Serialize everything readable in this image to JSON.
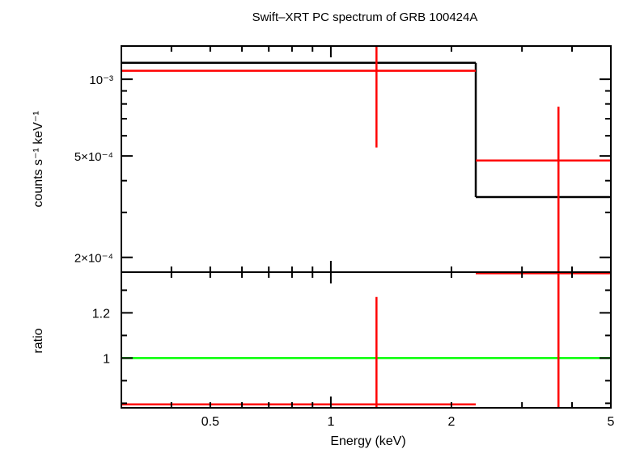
{
  "chart_data": {
    "type": "scatter",
    "title": "Swift–XRT PC spectrum of GRB 100424A",
    "xlabel": "Energy (keV)",
    "xscale": "log",
    "xlim": [
      0.3,
      5
    ],
    "x_ticks": [
      {
        "value": 0.5,
        "label": "0.5"
      },
      {
        "value": 1,
        "label": "1"
      },
      {
        "value": 2,
        "label": "2"
      },
      {
        "value": 5,
        "label": "5"
      }
    ],
    "top_panel": {
      "ylabel": "counts s⁻¹ keV⁻¹",
      "yscale": "log",
      "ylim": [
        0.000175,
        0.00135
      ],
      "y_ticks": [
        {
          "value": 0.001,
          "label": "10⁻³"
        },
        {
          "value": 0.0005,
          "label": "5×10⁻⁴"
        },
        {
          "value": 0.0002,
          "label": "2×10⁻⁴"
        }
      ],
      "data_points": [
        {
          "x": 1.3,
          "xlo": 0.3,
          "xhi": 2.3,
          "y": 0.00108,
          "ylo": 0.00054,
          "yhi": 0.00135
        },
        {
          "x": 3.7,
          "xlo": 2.3,
          "xhi": 5.0,
          "y": 0.00048,
          "ylo": 0.000175,
          "yhi": 0.00078
        }
      ],
      "model_steps": [
        {
          "xlo": 0.3,
          "xhi": 2.3,
          "y": 0.00116
        },
        {
          "xlo": 2.3,
          "xhi": 5.0,
          "y": 0.000345
        }
      ]
    },
    "bottom_panel": {
      "ylabel": "ratio",
      "ylim": [
        0.78,
        1.38
      ],
      "y_ticks": [
        {
          "value": 1,
          "label": "1"
        },
        {
          "value": 1.2,
          "label": "1.2"
        }
      ],
      "reference_line": 1,
      "data_points": [
        {
          "x": 1.3,
          "xlo": 0.3,
          "xhi": 2.3,
          "y": 0.795,
          "ylo": 0.78,
          "yhi": 1.27
        },
        {
          "x": 3.7,
          "xlo": 2.3,
          "xhi": 5.0,
          "y": 1.375,
          "ylo": 0.78,
          "yhi": 1.38
        }
      ]
    },
    "colors": {
      "data": "#ff0000",
      "model": "#000000",
      "reference": "#00ff00",
      "frame": "#000000"
    },
    "grid": false,
    "legend": "none"
  }
}
